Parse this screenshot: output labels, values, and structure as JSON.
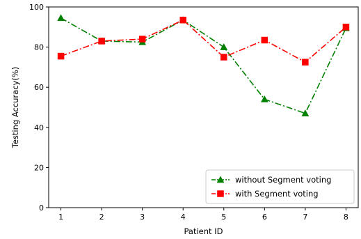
{
  "chart_data": {
    "type": "line",
    "xlabel": "Patient ID",
    "ylabel": "Testing Accuracy(%)",
    "x": [
      1,
      2,
      3,
      4,
      5,
      6,
      7,
      8
    ],
    "xlim": [
      0.7,
      8.3
    ],
    "ylim": [
      0,
      100
    ],
    "yticks": [
      0,
      20,
      40,
      60,
      80,
      100
    ],
    "grid": false,
    "legend_position": "lower-right",
    "series": [
      {
        "name": "without Segment voting",
        "color": "#008000",
        "marker": "triangle",
        "line_style": "dash-dot",
        "values": [
          94.5,
          83,
          82.5,
          93.5,
          80,
          54,
          47,
          89.5
        ]
      },
      {
        "name": "with Segment voting",
        "color": "#ff0000",
        "marker": "square",
        "line_style": "dash-dot",
        "values": [
          75.5,
          83,
          84,
          93.5,
          75,
          83.5,
          72.5,
          90
        ]
      }
    ]
  }
}
